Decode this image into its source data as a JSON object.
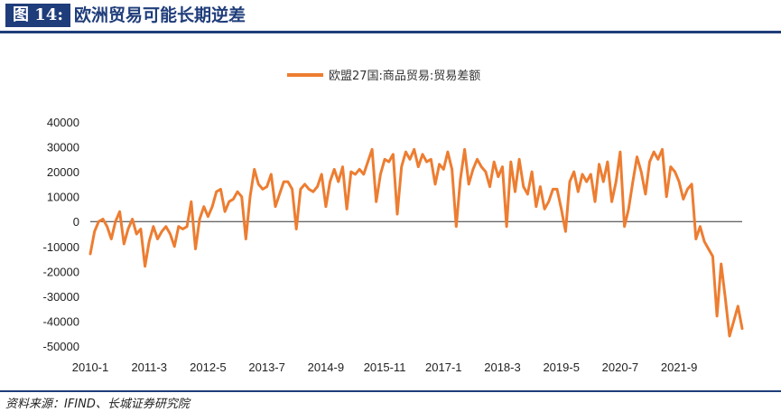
{
  "header": {
    "figure_tag": "图 14:",
    "title": "欧洲贸易可能长期逆差"
  },
  "source": "资料来源：IFIND、长城证券研究院",
  "colors": {
    "series": "#ED7D31",
    "brand": "#1f3d7a",
    "axis": "#333333"
  },
  "chart_data": {
    "type": "line",
    "title": "",
    "xlabel": "",
    "ylabel": "",
    "ylim": [
      -50000,
      40000
    ],
    "yticks": [
      40000,
      30000,
      20000,
      10000,
      0,
      -10000,
      -20000,
      -30000,
      -40000,
      -50000
    ],
    "grid": false,
    "legend_position": "top-center",
    "x_tick_labels": [
      "2010-1",
      "2011-3",
      "2012-5",
      "2013-7",
      "2014-9",
      "2015-11",
      "2017-1",
      "2018-3",
      "2019-5",
      "2020-7",
      "2021-9"
    ],
    "series": [
      {
        "name": "欧盟27国:商品贸易:贸易差额",
        "values": [
          -13000,
          -4000,
          0,
          1000,
          -2000,
          -7000,
          0,
          4000,
          -9000,
          -3000,
          1000,
          -5000,
          -3000,
          -18000,
          -8000,
          -2000,
          -7000,
          -4000,
          -2000,
          -5000,
          -10000,
          -2000,
          -3000,
          -2000,
          8000,
          -11000,
          1000,
          6000,
          2000,
          6000,
          12000,
          13000,
          4000,
          8000,
          9000,
          12000,
          10000,
          -7000,
          10000,
          21000,
          15000,
          13000,
          14000,
          19000,
          6000,
          11000,
          16000,
          16000,
          13000,
          -3000,
          13000,
          15000,
          13000,
          12000,
          14000,
          19000,
          6000,
          16000,
          21000,
          16000,
          22000,
          5000,
          20000,
          19000,
          21000,
          19000,
          24000,
          29000,
          8000,
          19000,
          25000,
          24000,
          27000,
          3000,
          22000,
          28000,
          25000,
          29000,
          22000,
          27000,
          24000,
          25000,
          15000,
          23000,
          21000,
          28000,
          21000,
          -2000,
          17000,
          29000,
          15000,
          21000,
          25000,
          22000,
          20000,
          14000,
          24000,
          18000,
          22000,
          -2000,
          24000,
          12000,
          25000,
          14000,
          11000,
          20000,
          6000,
          14000,
          5000,
          8000,
          13000,
          13000,
          5000,
          -4000,
          16000,
          20000,
          12000,
          19000,
          16000,
          19000,
          8000,
          23000,
          16000,
          24000,
          8000,
          16000,
          28000,
          -2000,
          5000,
          16000,
          26000,
          20000,
          11000,
          24000,
          28000,
          25000,
          29000,
          10000,
          22000,
          20000,
          16000,
          9000,
          13000,
          15000,
          -7000,
          -2000,
          -8000,
          -11000,
          -14000,
          -38000,
          -17000,
          -31000,
          -46000,
          -40000,
          -34000,
          -43000
        ]
      }
    ]
  }
}
